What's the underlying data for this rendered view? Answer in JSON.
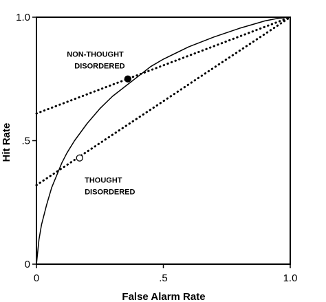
{
  "chart_data": {
    "type": "line",
    "title": "",
    "xlabel": "False Alarm Rate",
    "ylabel": "Hit Rate",
    "xlim": [
      0,
      1
    ],
    "ylim": [
      0,
      1
    ],
    "x_ticks": [
      {
        "value": 0,
        "label": "0"
      },
      {
        "value": 0.5,
        "label": ".5"
      },
      {
        "value": 1,
        "label": "1.0"
      }
    ],
    "y_ticks": [
      {
        "value": 0,
        "label": "0"
      },
      {
        "value": 0.5,
        "label": ".5"
      },
      {
        "value": 1,
        "label": "1.0"
      }
    ],
    "grid": false,
    "series": [
      {
        "style": "solid curve",
        "x": [
          0,
          0.01,
          0.02,
          0.04,
          0.06,
          0.08,
          0.1,
          0.12,
          0.15,
          0.2,
          0.25,
          0.3,
          0.35,
          0.4,
          0.45,
          0.5,
          0.6,
          0.7,
          0.8,
          0.9,
          0.95,
          1
        ],
        "y": [
          0,
          0.1,
          0.16,
          0.24,
          0.31,
          0.36,
          0.41,
          0.45,
          0.5,
          0.57,
          0.63,
          0.68,
          0.72,
          0.76,
          0.8,
          0.83,
          0.88,
          0.92,
          0.955,
          0.985,
          0.995,
          1
        ]
      },
      {
        "style": "dotted line",
        "x": [
          0,
          1
        ],
        "y": [
          0.61,
          1
        ]
      },
      {
        "style": "dotted line",
        "x": [
          0,
          1
        ],
        "y": [
          0.32,
          1
        ]
      }
    ],
    "points": [
      {
        "x": 0.36,
        "y": 0.75,
        "filled": true
      },
      {
        "x": 0.17,
        "y": 0.43,
        "filled": false
      }
    ],
    "annotations": [
      {
        "lines": [
          "NON-THOUGHT",
          "DISORDERED"
        ],
        "x": 0.12,
        "y": 0.84
      },
      {
        "lines": [
          "THOUGHT",
          "DISORDERED"
        ],
        "x": 0.19,
        "y": 0.33
      }
    ]
  }
}
